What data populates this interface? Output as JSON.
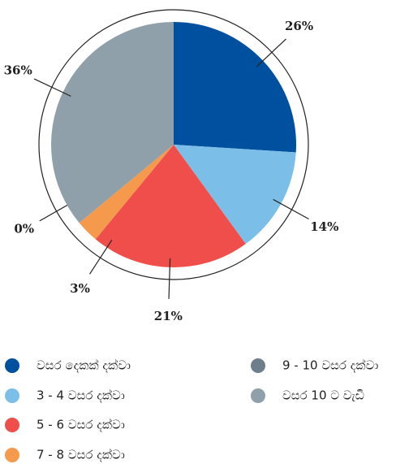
{
  "chart_data": {
    "type": "pie",
    "categories": [
      "වසර දෙකක් දක්වා",
      "3 - 4 වසර දක්වා",
      "5 - 6 වසර දක්වා",
      "7 - 8 වසර දක්වා",
      "9 - 10 වසර දක්වා",
      "වසර 10 ට වැඩි"
    ],
    "values": [
      26,
      14,
      21,
      3,
      0,
      36
    ],
    "value_labels": [
      "26%",
      "14%",
      "21%",
      "3%",
      "0%",
      "36%"
    ],
    "colors": [
      "#0050a0",
      "#7bbfe9",
      "#f04e4a",
      "#f59a4c",
      "#6e7e8a",
      "#8fa0aa"
    ],
    "legend": "bottom"
  }
}
